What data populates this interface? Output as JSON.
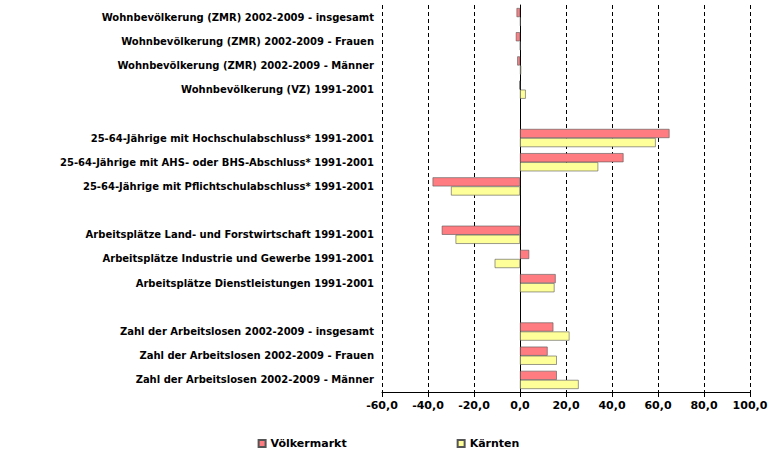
{
  "chart_data": {
    "type": "bar",
    "orientation": "horizontal",
    "categories": [
      "Wohnbevölkerung (ZMR) 2002-2009 - insgesamt",
      "Wohnbevölkerung (ZMR) 2002-2009 - Frauen",
      "Wohnbevölkerung (ZMR) 2002-2009 - Männer",
      "Wohnbevölkerung (VZ) 1991-2001",
      null,
      "25-64-Jährige mit Hochschulabschluss* 1991-2001",
      "25-64-Jährige mit AHS- oder BHS-Abschluss* 1991-2001",
      "25-64-Jährige mit Pflichtschulabschluss* 1991-2001",
      null,
      "Arbeitsplätze Land- und Forstwirtschaft 1991-2001",
      "Arbeitsplätze Industrie und Gewerbe 1991-2001",
      "Arbeitsplätze Dienstleistungen 1991-2001",
      null,
      "Zahl der Arbeitslosen 2002-2009 - insgesamt",
      "Zahl der Arbeitslosen 2002-2009 - Frauen",
      "Zahl der Arbeitslosen 2002-2009 - Männer"
    ],
    "series": [
      {
        "name": "Völkermarkt",
        "color": "#ff7c80",
        "values": [
          -1.5,
          -1.8,
          -1.2,
          -0.2,
          null,
          65,
          45,
          -38,
          null,
          -34,
          4,
          15.5,
          null,
          14.5,
          12,
          16
        ]
      },
      {
        "name": "Kärnten",
        "color": "#ffff99",
        "values": [
          0.3,
          0.2,
          0.5,
          2.5,
          null,
          59,
          34,
          -30,
          null,
          -28,
          -11,
          15,
          null,
          21.5,
          16,
          25.5
        ]
      }
    ],
    "xlim": [
      -60,
      100
    ],
    "xticks": [
      {
        "value": -60,
        "label": "-60,0"
      },
      {
        "value": -40,
        "label": "-40,0"
      },
      {
        "value": -20,
        "label": "-20,0"
      },
      {
        "value": 0,
        "label": "0,0"
      },
      {
        "value": 20,
        "label": "20,0"
      },
      {
        "value": 40,
        "label": "40,0"
      },
      {
        "value": 60,
        "label": "60,0"
      },
      {
        "value": 80,
        "label": "80,0"
      },
      {
        "value": 100,
        "label": "100,0"
      }
    ],
    "grid": true,
    "legend": "bottom"
  }
}
